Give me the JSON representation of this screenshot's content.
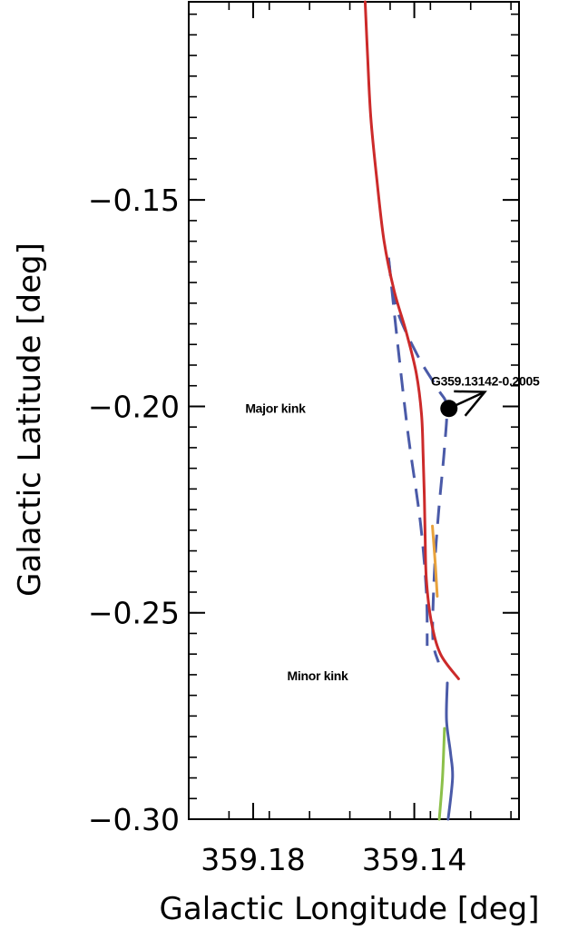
{
  "chart_data": {
    "type": "line",
    "title": "",
    "xlabel": "Galactic Longitude [deg]",
    "ylabel": "Galactic Latitude [deg]",
    "xlim": [
      359.196,
      359.114
    ],
    "ylim": [
      -0.3,
      -0.102
    ],
    "x_ticks": [
      359.18,
      359.14
    ],
    "x_tick_labels": [
      "359.18",
      "359.14"
    ],
    "y_ticks": [
      -0.15,
      -0.2,
      -0.25,
      -0.3
    ],
    "y_tick_labels": [
      "−0.15",
      "−0.20",
      "−0.25",
      "−0.30"
    ],
    "grid": false,
    "series": [
      {
        "color": "#cc2a2a",
        "style": "solid",
        "points": [
          [
            359.1522,
            -0.102
          ],
          [
            359.1516,
            -0.115
          ],
          [
            359.1508,
            -0.13
          ],
          [
            359.1493,
            -0.145
          ],
          [
            359.1475,
            -0.16
          ],
          [
            359.145,
            -0.172
          ],
          [
            359.142,
            -0.182
          ],
          [
            359.1395,
            -0.192
          ],
          [
            359.1382,
            -0.202
          ],
          [
            359.1378,
            -0.212
          ],
          [
            359.1375,
            -0.222
          ],
          [
            359.1373,
            -0.232
          ],
          [
            359.137,
            -0.242
          ],
          [
            359.1358,
            -0.252
          ],
          [
            359.1335,
            -0.26
          ],
          [
            359.129,
            -0.266
          ]
        ]
      },
      {
        "color": "#4a5aa8",
        "style": "dashed",
        "points": [
          [
            359.1464,
            -0.164
          ],
          [
            359.1445,
            -0.176
          ],
          [
            359.139,
            -0.188
          ],
          [
            359.134,
            -0.196
          ],
          [
            359.132,
            -0.2
          ],
          [
            359.1325,
            -0.21
          ],
          [
            359.134,
            -0.226
          ],
          [
            359.135,
            -0.24
          ],
          [
            359.1354,
            -0.256
          ],
          [
            359.134,
            -0.262
          ]
        ]
      },
      {
        "color": "#4a5aa8",
        "style": "dashed",
        "points": [
          [
            359.1464,
            -0.164
          ],
          [
            359.144,
            -0.186
          ],
          [
            359.1415,
            -0.207
          ],
          [
            359.1385,
            -0.228
          ],
          [
            359.137,
            -0.245
          ],
          [
            359.1368,
            -0.258
          ]
        ]
      },
      {
        "color": "#e8a23c",
        "style": "solid",
        "points": [
          [
            359.1355,
            -0.229
          ],
          [
            359.1348,
            -0.238
          ],
          [
            359.1343,
            -0.246
          ]
        ]
      },
      {
        "color": "#4a5aa8",
        "style": "solid",
        "points": [
          [
            359.1318,
            -0.267
          ],
          [
            359.132,
            -0.276
          ],
          [
            359.131,
            -0.284
          ],
          [
            359.1305,
            -0.29
          ],
          [
            359.1316,
            -0.3
          ]
        ]
      },
      {
        "color": "#8cc04a",
        "style": "solid",
        "points": [
          [
            359.1325,
            -0.278
          ],
          [
            359.133,
            -0.29
          ],
          [
            359.1338,
            -0.3
          ]
        ]
      }
    ],
    "marker": {
      "label": "G359.13142-0.2005",
      "x": 359.1314,
      "y": -0.2005,
      "arrow_to": [
        359.1225,
        -0.1965
      ]
    },
    "annotations": [
      {
        "text": "Major kink",
        "x": 359.1745,
        "y": -0.2005
      },
      {
        "text": "Minor kink",
        "x": 359.164,
        "y": -0.2652
      }
    ]
  }
}
